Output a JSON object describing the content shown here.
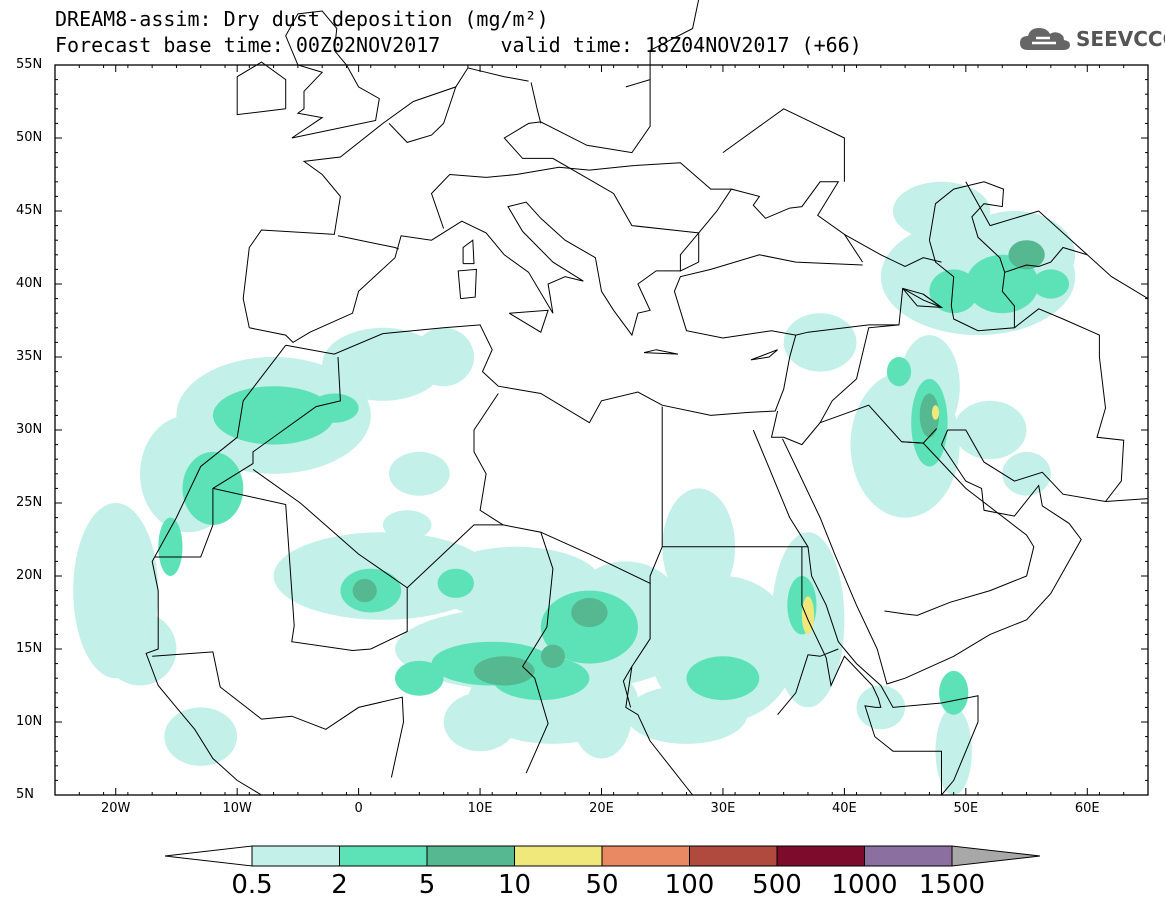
{
  "title_line1": "DREAM8-assim: Dry dust deposition (mg/m²)",
  "title_line2": "Forecast base time: 00Z02NOV2017     valid time: 18Z04NOV2017 (+66)",
  "logo_text": "SEEVCCC",
  "map": {
    "lon_range": [
      -25,
      65
    ],
    "lat_range": [
      5,
      55
    ],
    "lat_labels": [
      "55N",
      "50N",
      "45N",
      "40N",
      "35N",
      "30N",
      "25N",
      "20N",
      "15N",
      "10N",
      "5N"
    ],
    "lon_labels": [
      "20W",
      "10W",
      "0",
      "10E",
      "20E",
      "30E",
      "40E",
      "50E",
      "60E"
    ]
  },
  "colorbar": {
    "labels": [
      "0.5",
      "2",
      "5",
      "10",
      "50",
      "100",
      "500",
      "1000",
      "1500"
    ],
    "colors": [
      "#c3f0e8",
      "#5de2b8",
      "#56b891",
      "#f1e87c",
      "#e98963",
      "#b04a3e",
      "#7c0b2c",
      "#8b6fa0"
    ],
    "under_color": "#ffffff",
    "over_color": "#a8a8a8"
  }
}
